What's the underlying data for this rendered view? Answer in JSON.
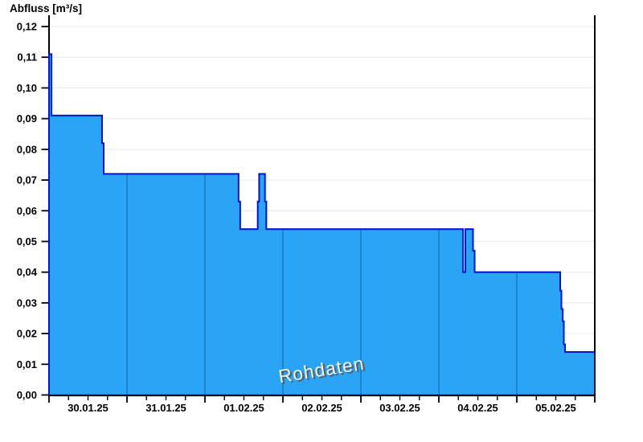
{
  "title": "Abfluss [m³/s]",
  "watermark": "Rohdaten",
  "colors": {
    "background": "#FFFFFF",
    "area_fill": "#2AA5F6",
    "area_outline": "#0013CE",
    "day_separator": "#1478BC",
    "gridline": "#ECECEC",
    "axis": "#000000",
    "label": "#000000",
    "watermark_text": "#F2F2F2",
    "watermark_shadow": "#565656"
  },
  "chart_data": {
    "type": "area",
    "title": "Abfluss [m³/s]",
    "ylabel": "Abfluss [m³/s]",
    "watermark": "Rohdaten",
    "ylim": [
      0,
      0.12
    ],
    "y_tick_step": 0.01,
    "y_tick_labels": [
      "0,12",
      "0,11",
      "0,10",
      "0,09",
      "0,08",
      "0,07",
      "0,06",
      "0,05",
      "0,04",
      "0,03",
      "0,02",
      "0,01",
      "0,00"
    ],
    "x_days": [
      "30.01.25",
      "31.01.25",
      "01.02.25",
      "02.02.25",
      "03.02.25",
      "04.02.25",
      "05.02.25"
    ],
    "x_minor_divisions_per_day": 4,
    "grid": "horizontal",
    "legend": "none",
    "series": [
      {
        "name": "Rohdaten",
        "unit": "m³/s",
        "step_points_day_value": [
          [
            0.0,
            0.111
          ],
          [
            0.031,
            0.091
          ],
          [
            0.68,
            0.082
          ],
          [
            0.701,
            0.072
          ],
          [
            2.431,
            0.063
          ],
          [
            2.452,
            0.054
          ],
          [
            2.677,
            0.063
          ],
          [
            2.695,
            0.072
          ],
          [
            2.77,
            0.063
          ],
          [
            2.787,
            0.054
          ],
          [
            5.309,
            0.04
          ],
          [
            5.34,
            0.054
          ],
          [
            5.438,
            0.047
          ],
          [
            5.459,
            0.04
          ],
          [
            6.557,
            0.034
          ],
          [
            6.572,
            0.028
          ],
          [
            6.588,
            0.024
          ],
          [
            6.603,
            0.0165
          ],
          [
            6.619,
            0.014
          ]
        ],
        "end_day": 7
      }
    ]
  }
}
